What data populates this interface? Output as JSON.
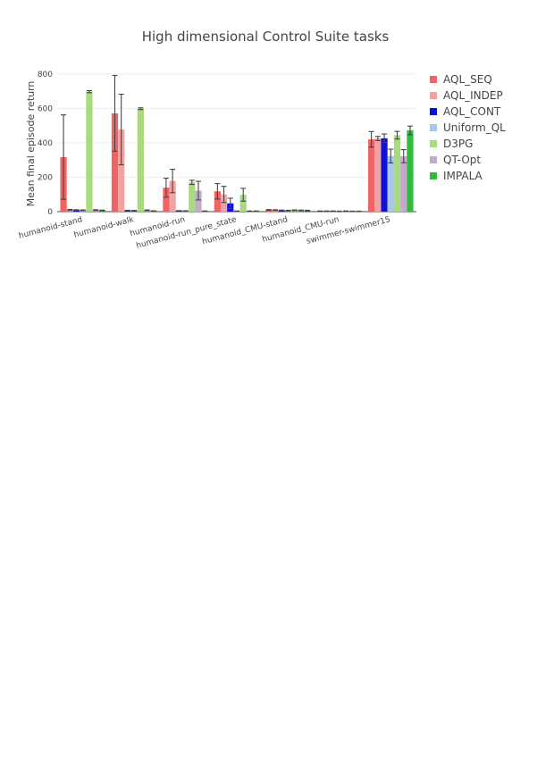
{
  "chart_data": {
    "type": "bar",
    "title": "High dimensional Control Suite tasks",
    "xlabel": "",
    "ylabel": "Mean final episode return",
    "ylim": [
      0,
      830
    ],
    "yticks": [
      0,
      200,
      400,
      600,
      800
    ],
    "grid": true,
    "legend_position": "right",
    "categories": [
      "humanoid-stand",
      "humanoid-walk",
      "humanoid-run",
      "humanoid-run_pure_state",
      "humanoid_CMU-stand",
      "humanoid_CMU-run",
      "swimmer-swimmer15"
    ],
    "series": [
      {
        "name": "AQL_SEQ",
        "color": "#ef6566",
        "values": [
          317,
          571,
          139,
          118,
          10,
          3,
          420
        ],
        "errors": [
          245,
          220,
          55,
          45,
          2,
          1,
          45
        ]
      },
      {
        "name": "AQL_INDEP",
        "color": "#f3a2a2",
        "values": [
          10,
          477,
          178,
          100,
          9,
          3,
          425
        ],
        "errors": [
          3,
          205,
          68,
          47,
          2,
          1,
          12
        ]
      },
      {
        "name": "AQL_CONT",
        "color": "#0d10d9",
        "values": [
          9,
          6,
          5,
          48,
          7,
          3,
          426
        ],
        "errors": [
          2,
          2,
          1,
          30,
          2,
          1,
          25
        ]
      },
      {
        "name": "Uniform_QL",
        "color": "#a6c8e6",
        "values": [
          8,
          5,
          4,
          3,
          6,
          2,
          323
        ],
        "errors": [
          2,
          2,
          1,
          1,
          2,
          1,
          40
        ]
      },
      {
        "name": "D3PG",
        "color": "#a9db7c",
        "values": [
          697,
          598,
          170,
          98,
          8,
          3,
          444
        ],
        "errors": [
          6,
          5,
          12,
          37,
          2,
          1,
          22
        ]
      },
      {
        "name": "QT-Opt",
        "color": "#c2abc9",
        "values": [
          9,
          8,
          122,
          3,
          7,
          2,
          322
        ],
        "errors": [
          2,
          2,
          54,
          1,
          2,
          1,
          38
        ]
      },
      {
        "name": "IMPALA",
        "color": "#2ebd3b",
        "values": [
          7,
          4,
          3,
          3,
          6,
          2,
          472
        ],
        "errors": [
          2,
          1,
          1,
          1,
          2,
          1,
          25
        ]
      }
    ]
  }
}
